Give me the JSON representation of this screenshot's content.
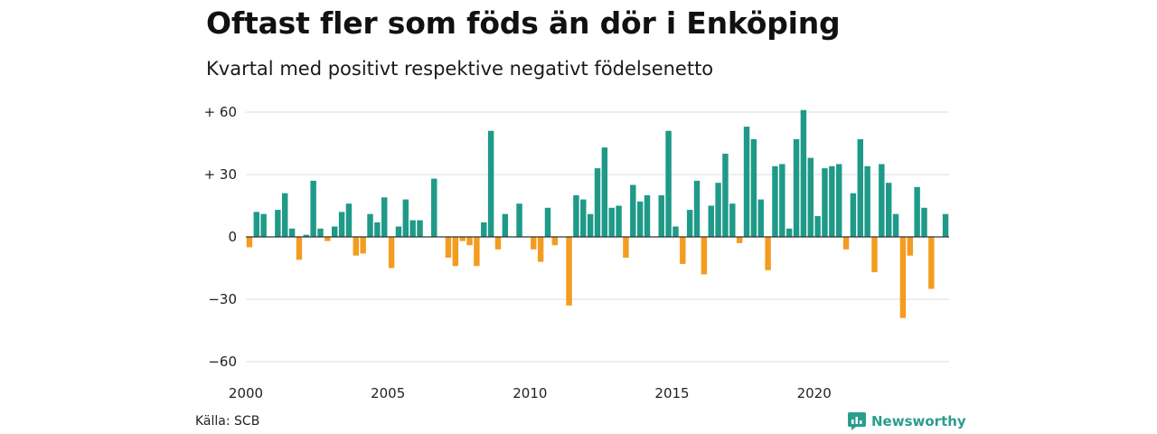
{
  "colors": {
    "positive": "#1f9a88",
    "negative": "#f39c1f",
    "grid": "#dddddd",
    "zero": "#333333"
  },
  "header": {
    "title": "Oftast fler som föds än dör i Enköping",
    "subtitle": "Kvartal med positivt respektive negativt födelsenetto"
  },
  "footer": {
    "source": "Källa: SCB",
    "brand": "Newsworthy"
  },
  "chart_data": {
    "type": "bar",
    "title": "Oftast fler som föds än dör i Enköping",
    "subtitle": "Kvartal med positivt respektive negativt födelsenetto",
    "xlabel": "",
    "ylabel": "",
    "ylim": [
      -65,
      62
    ],
    "yticks": [
      60,
      30,
      0,
      -30,
      -60
    ],
    "ytick_labels": [
      "+ 60",
      "+ 30",
      "0",
      "−30",
      "−60"
    ],
    "xtick_labels": [
      "2000",
      "2005",
      "2010",
      "2015",
      "2020"
    ],
    "grid": true,
    "start_year": 2000,
    "values": [
      -5,
      12,
      11,
      0,
      13,
      21,
      4,
      -11,
      1,
      27,
      4,
      -2,
      5,
      12,
      16,
      -9,
      -8,
      11,
      7,
      19,
      -15,
      5,
      18,
      8,
      8,
      0,
      28,
      0,
      -10,
      -14,
      -2,
      -4,
      -14,
      7,
      51,
      -6,
      11,
      0,
      16,
      0,
      -6,
      -12,
      14,
      -4,
      0,
      -33,
      20,
      18,
      11,
      33,
      43,
      14,
      15,
      -10,
      25,
      17,
      20,
      0,
      20,
      51,
      5,
      -13,
      13,
      27,
      -18,
      15,
      26,
      40,
      16,
      -3,
      53,
      47,
      18,
      -16,
      34,
      35,
      4,
      47,
      61,
      38,
      10,
      33,
      34,
      35,
      -6,
      21,
      47,
      34,
      -17,
      35,
      26,
      11,
      -39,
      -9,
      24,
      14,
      -25,
      0,
      11
    ]
  }
}
